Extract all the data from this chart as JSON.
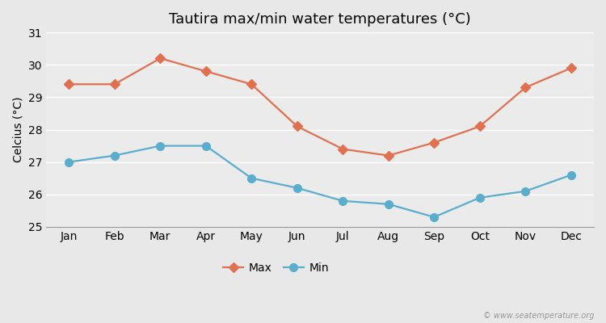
{
  "title": "Tautira max/min water temperatures (°C)",
  "ylabel": "Celcius (°C)",
  "months": [
    "Jan",
    "Feb",
    "Mar",
    "Apr",
    "May",
    "Jun",
    "Jul",
    "Aug",
    "Sep",
    "Oct",
    "Nov",
    "Dec"
  ],
  "max_values": [
    29.4,
    29.4,
    30.2,
    29.8,
    29.4,
    28.1,
    27.4,
    27.2,
    27.6,
    28.1,
    29.3,
    29.9
  ],
  "min_values": [
    27.0,
    27.2,
    27.5,
    27.5,
    26.5,
    26.2,
    25.8,
    25.7,
    25.3,
    25.9,
    26.1,
    26.6
  ],
  "max_color": "#e07050",
  "min_color": "#5aadcc",
  "background_color": "#e8e8e8",
  "plot_bg_color": "#ebebeb",
  "grid_color": "#ffffff",
  "ylim": [
    25,
    31
  ],
  "yticks": [
    25,
    26,
    27,
    28,
    29,
    30,
    31
  ],
  "watermark": "© www.seatemperature.org",
  "title_fontsize": 13,
  "axis_label_fontsize": 10,
  "tick_fontsize": 10,
  "legend_fontsize": 10,
  "max_marker": "D",
  "min_marker": "o",
  "linewidth": 1.6,
  "max_markersize": 6,
  "min_markersize": 7
}
